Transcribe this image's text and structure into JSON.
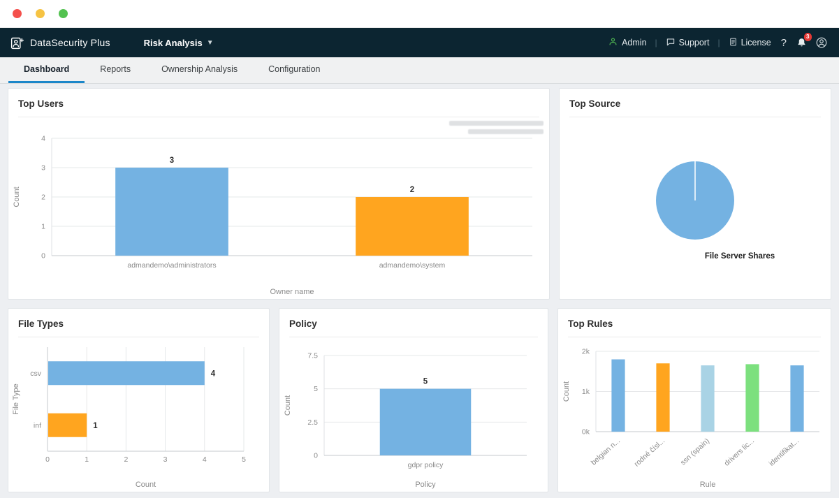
{
  "header": {
    "app_name": "DataSecurity Plus",
    "module_selector": "Risk Analysis",
    "menu": {
      "admin": "Admin",
      "support": "Support",
      "license": "License",
      "help": "?",
      "notification_count": "3"
    }
  },
  "tabs": [
    {
      "label": "Dashboard",
      "active": true
    },
    {
      "label": "Reports",
      "active": false
    },
    {
      "label": "Ownership Analysis",
      "active": false
    },
    {
      "label": "Configuration",
      "active": false
    }
  ],
  "colors": {
    "header_bg": "#0c2531",
    "active_tab_underline": "#1c87c9",
    "bar_blue": "#74b2e2",
    "bar_orange": "#ffa51f",
    "bar_light_blue": "#a9d3e5",
    "bar_green": "#7ce07e"
  },
  "chart_data": [
    {
      "id": "top_users",
      "type": "bar",
      "title": "Top Users",
      "categories": [
        "admandemo\\administrators",
        "admandemo\\system"
      ],
      "values": [
        3,
        2
      ],
      "colors": [
        "#74b2e2",
        "#ffa51f"
      ],
      "ylabel": "Count",
      "xlabel": "Owner name",
      "ylim": [
        0,
        4
      ],
      "yticks": [
        0,
        1,
        2,
        3,
        4
      ],
      "show_values": true,
      "grid": true,
      "legend": "none"
    },
    {
      "id": "top_source",
      "type": "pie",
      "title": "Top Source",
      "slices": [
        {
          "label": "File Server Shares",
          "value": 100,
          "color": "#74b2e2"
        }
      ]
    },
    {
      "id": "file_types",
      "type": "bar-horizontal",
      "title": "File Types",
      "categories": [
        "csv",
        "inf"
      ],
      "values": [
        4,
        1
      ],
      "colors": [
        "#74b2e2",
        "#ffa51f"
      ],
      "xlabel": "Count",
      "ylabel": "File Type",
      "xlim": [
        0,
        5
      ],
      "xticks": [
        0,
        1,
        2,
        3,
        4,
        5
      ],
      "show_values": true,
      "grid": true
    },
    {
      "id": "policy",
      "type": "bar",
      "title": "Policy",
      "categories": [
        "gdpr policy"
      ],
      "values": [
        5
      ],
      "colors": [
        "#74b2e2"
      ],
      "ylabel": "Count",
      "xlabel": "Policy",
      "ylim": [
        0,
        7.5
      ],
      "yticks": [
        0,
        2.5,
        5,
        7.5
      ],
      "show_values": true,
      "grid": true
    },
    {
      "id": "top_rules",
      "type": "bar",
      "title": "Top Rules",
      "categories": [
        "belgian n...",
        "rodné čísl...",
        "ssn (spain)",
        "drivers lic...",
        "identifikat..."
      ],
      "values": [
        1800,
        1700,
        1650,
        1680,
        1650
      ],
      "colors": [
        "#74b2e2",
        "#ffa51f",
        "#a9d3e5",
        "#7ce07e",
        "#74b2e2"
      ],
      "ylabel": "Count",
      "xlabel": "Rule",
      "ylim": [
        0,
        2000
      ],
      "yticks": [
        0,
        1000,
        2000
      ],
      "ytick_labels": [
        "0k",
        "1k",
        "2k"
      ],
      "rotate_labels": true,
      "show_values": false,
      "grid": true
    }
  ]
}
